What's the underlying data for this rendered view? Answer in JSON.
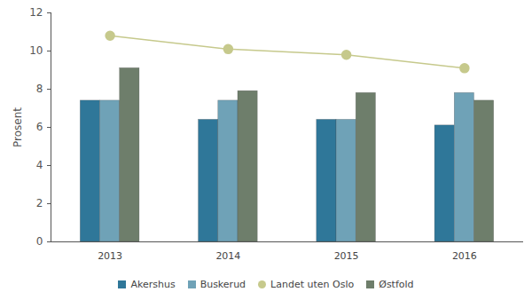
{
  "chart_data": {
    "type": "bar",
    "categories": [
      "2013",
      "2014",
      "2015",
      "2016"
    ],
    "ylabel": "Prosent",
    "ylim": [
      0,
      12
    ],
    "yticks": [
      0,
      2,
      4,
      6,
      8,
      10,
      12
    ],
    "grid": false,
    "legend": "bottom",
    "series": [
      {
        "name": "Akershus",
        "type": "bar",
        "color": "#2f7799",
        "values": [
          7.4,
          6.4,
          6.4,
          6.1
        ]
      },
      {
        "name": "Buskerud",
        "type": "bar",
        "color": "#6fa2b7",
        "values": [
          7.4,
          7.4,
          6.4,
          7.8
        ]
      },
      {
        "name": "Landet uten Oslo",
        "type": "line",
        "color": "#c6c98c",
        "marker": "circle",
        "values": [
          10.8,
          10.1,
          9.8,
          9.1
        ]
      },
      {
        "name": "Østfold",
        "type": "bar",
        "color": "#6e7e6b",
        "values": [
          9.1,
          7.9,
          7.8,
          7.4
        ]
      }
    ]
  }
}
